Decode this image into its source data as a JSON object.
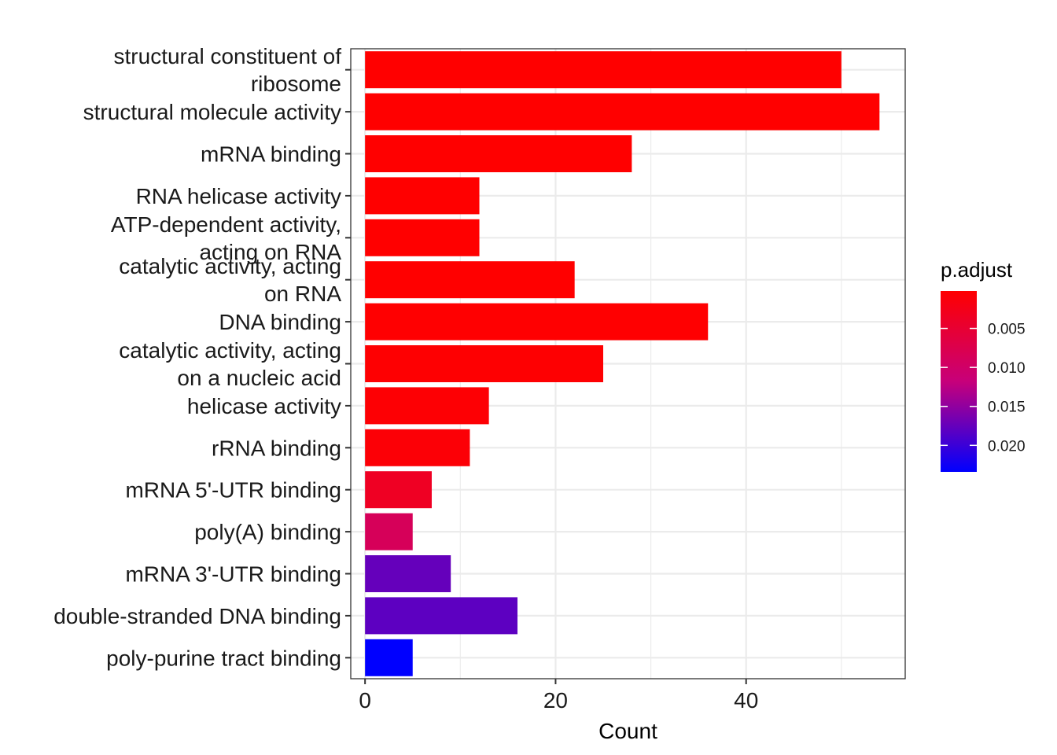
{
  "chart_data": {
    "type": "bar",
    "orientation": "horizontal",
    "xlabel": "Count",
    "ylabel": "",
    "title": "",
    "xlim": [
      -1.5,
      56.7
    ],
    "x_ticks": [
      0,
      20,
      40
    ],
    "grid": true,
    "legend": {
      "title": "p.adjust",
      "placement": "right",
      "type": "colorbar",
      "low_color": "#FF0000",
      "high_color": "#0000FF",
      "range": [
        0.0002,
        0.0234
      ],
      "ticks": [
        {
          "value": 0.005,
          "label": "0.005"
        },
        {
          "value": 0.01,
          "label": "0.010"
        },
        {
          "value": 0.015,
          "label": "0.015"
        },
        {
          "value": 0.02,
          "label": "0.020"
        }
      ]
    },
    "bars": [
      {
        "label": [
          "structural constituent of",
          "ribosome"
        ],
        "value": 50,
        "p_adjust": 0.0002
      },
      {
        "label": [
          "structural molecule activity"
        ],
        "value": 54,
        "p_adjust": 0.0002
      },
      {
        "label": [
          "mRNA binding"
        ],
        "value": 28,
        "p_adjust": 0.0002
      },
      {
        "label": [
          "RNA helicase activity"
        ],
        "value": 12,
        "p_adjust": 0.0002
      },
      {
        "label": [
          "ATP-dependent activity,",
          "acting on RNA"
        ],
        "value": 12,
        "p_adjust": 0.0002
      },
      {
        "label": [
          "catalytic activity, acting",
          "on RNA"
        ],
        "value": 22,
        "p_adjust": 0.0002
      },
      {
        "label": [
          "DNA binding"
        ],
        "value": 36,
        "p_adjust": 0.0003
      },
      {
        "label": [
          "catalytic activity, acting",
          "on a nucleic acid"
        ],
        "value": 25,
        "p_adjust": 0.0004
      },
      {
        "label": [
          "helicase activity"
        ],
        "value": 13,
        "p_adjust": 0.0006
      },
      {
        "label": [
          "rRNA binding"
        ],
        "value": 11,
        "p_adjust": 0.0008
      },
      {
        "label": [
          "mRNA 5'-UTR binding"
        ],
        "value": 7,
        "p_adjust": 0.0035
      },
      {
        "label": [
          "poly(A) binding"
        ],
        "value": 5,
        "p_adjust": 0.0087
      },
      {
        "label": [
          "mRNA 3'-UTR binding"
        ],
        "value": 9,
        "p_adjust": 0.0175
      },
      {
        "label": [
          "double-stranded DNA binding"
        ],
        "value": 16,
        "p_adjust": 0.018
      },
      {
        "label": [
          "poly-purine tract binding"
        ],
        "value": 5,
        "p_adjust": 0.0234
      }
    ]
  }
}
